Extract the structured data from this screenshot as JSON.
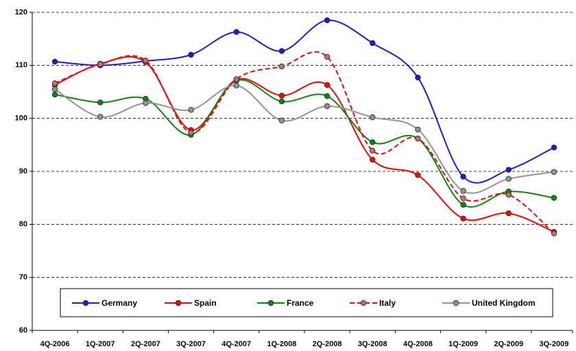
{
  "chart_data": {
    "type": "line",
    "categories": [
      "4Q-2006",
      "1Q-2007",
      "2Q-2007",
      "3Q-2007",
      "4Q-2007",
      "1Q-2008",
      "2Q-2008",
      "3Q-2008",
      "4Q-2008",
      "1Q-2009",
      "2Q-2009",
      "3Q-2009"
    ],
    "series": [
      {
        "name": "Germany",
        "color": "#1a1ae0",
        "marker_color": "#1a1ae0",
        "dashed": false,
        "values": [
          110.7,
          110.0,
          110.8,
          112.0,
          116.3,
          112.7,
          118.5,
          114.2,
          107.7,
          89.0,
          90.3,
          94.5
        ]
      },
      {
        "name": "Spain",
        "color": "#ff0000",
        "marker_color": "#ff0000",
        "dashed": false,
        "values": [
          106.3,
          110.3,
          110.6,
          97.8,
          107.3,
          104.3,
          106.3,
          92.2,
          89.3,
          81.1,
          82.1,
          78.6
        ]
      },
      {
        "name": "France",
        "color": "#0a8a0a",
        "marker_color": "#0a8a0a",
        "dashed": false,
        "values": [
          104.5,
          103.0,
          103.7,
          96.9,
          107.1,
          103.2,
          104.2,
          95.5,
          96.2,
          83.7,
          86.2,
          85.0
        ]
      },
      {
        "name": "Italy",
        "color": "#ff0000",
        "marker_color": "#c07070",
        "dashed": true,
        "values": [
          106.6,
          110.2,
          110.9,
          97.3,
          107.4,
          109.8,
          111.6,
          93.9,
          96.2,
          84.9,
          85.6,
          78.3
        ]
      },
      {
        "name": "United Kingdom",
        "color": "#939393",
        "marker_color": "#939393",
        "dashed": false,
        "values": [
          105.5,
          100.3,
          102.9,
          101.6,
          106.2,
          99.6,
          102.3,
          100.2,
          97.9,
          86.3,
          88.6,
          89.9
        ]
      }
    ],
    "ylim": [
      60,
      120
    ],
    "yticks": [
      60,
      70,
      80,
      90,
      100,
      110,
      120
    ],
    "grid": true,
    "legend": "bottom"
  }
}
